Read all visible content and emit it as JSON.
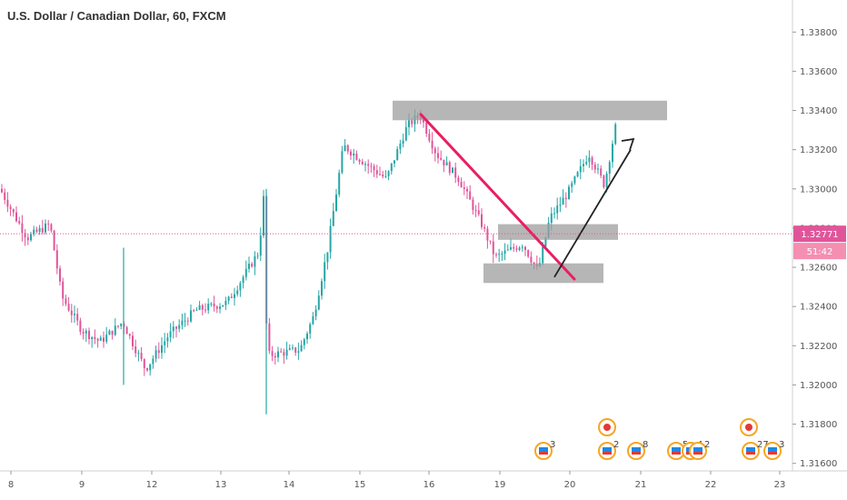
{
  "chart_data": {
    "type": "candlestick",
    "title": "U.S. Dollar / Canadian Dollar, 60, FXCM",
    "x_ticks": [
      "8",
      "9",
      "12",
      "13",
      "14",
      "15",
      "16",
      "19",
      "20",
      "21",
      "22",
      "23"
    ],
    "y_ticks": [
      "1.33800",
      "1.33600",
      "1.33400",
      "1.33200",
      "1.33000",
      "1.32800",
      "1.32600",
      "1.32400",
      "1.32200",
      "1.32000",
      "1.31800",
      "1.31600"
    ],
    "ylim": [
      1.3158,
      1.3388
    ],
    "current_price": "1.32771",
    "countdown": "51:42",
    "colors": {
      "up": "#26a6a6",
      "down": "#e0559a",
      "price_line": "#e0559a",
      "trendline": "#e91e63",
      "arrow": "#222222",
      "zone": "#9e9e9e"
    },
    "zones": [
      {
        "name": "resistance-zone",
        "from": "16",
        "price_low": 1.3335,
        "price_high": 1.3345
      },
      {
        "name": "middle-zone",
        "from": "19",
        "price_low": 1.3274,
        "price_high": 1.3282
      },
      {
        "name": "support-zone",
        "from": "19",
        "price_low": 1.3252,
        "price_high": 1.3262
      }
    ],
    "events": [
      {
        "flag": "us",
        "count": "3"
      },
      {
        "flag": "us",
        "count": "2"
      },
      {
        "flag": "us",
        "count": "8"
      },
      {
        "flag": "us",
        "count": "5"
      },
      {
        "flag": "us",
        "count": "4"
      },
      {
        "flag": "us",
        "count": "2"
      },
      {
        "flag": "us",
        "count": "27"
      },
      {
        "flag": "us",
        "count": "3"
      },
      {
        "flag": "ca",
        "count": ""
      },
      {
        "flag": "ca",
        "count": ""
      }
    ]
  }
}
